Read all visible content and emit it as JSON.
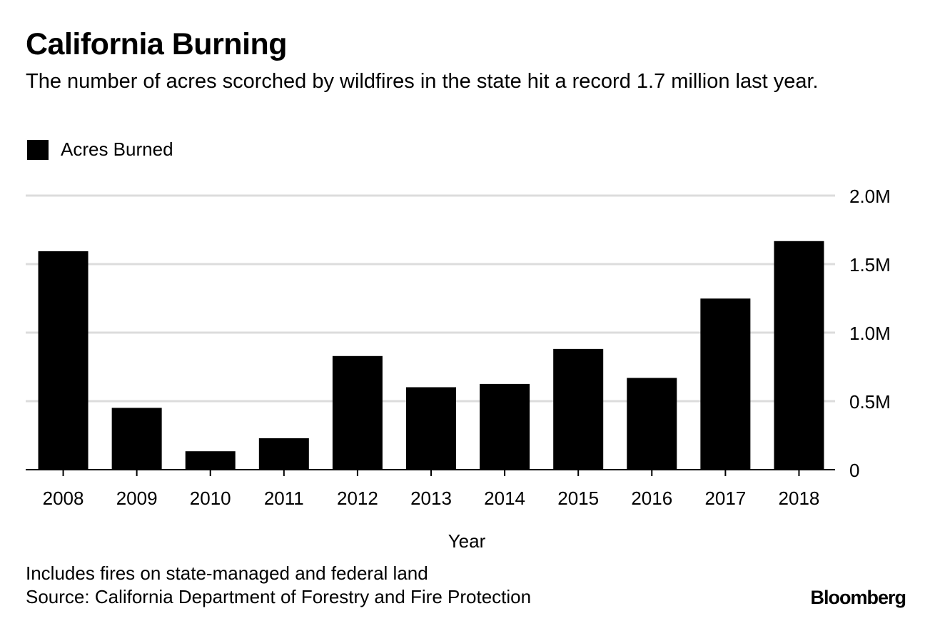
{
  "header": {
    "title": "California Burning",
    "subtitle": "The number of acres scorched by wildfires in the state hit a record 1.7 million last year."
  },
  "footer": {
    "note": "Includes fires on state-managed and federal land",
    "source": "Source: California Department of Forestry and Fire Protection",
    "brand": "Bloomberg"
  },
  "colors": {
    "bar": "#000000",
    "gridline": "#dcdcdc",
    "axis": "#000000",
    "background": "#ffffff"
  },
  "chart_data": {
    "type": "bar",
    "title": "California Burning",
    "subtitle": "The number of acres scorched by wildfires in the state hit a record 1.7 million last year.",
    "xlabel": "Year",
    "ylabel": "",
    "legend": {
      "placement": "top-left",
      "entries": [
        "Acres Burned"
      ]
    },
    "y_axis_position": "right",
    "grid": true,
    "ylim": [
      0,
      2000000
    ],
    "yticks": [
      {
        "value": 0,
        "label": "0"
      },
      {
        "value": 500000,
        "label": "0.5M"
      },
      {
        "value": 1000000,
        "label": "1.0M"
      },
      {
        "value": 1500000,
        "label": "1.5M"
      },
      {
        "value": 2000000,
        "label": "2.0M"
      }
    ],
    "categories": [
      "2008",
      "2009",
      "2010",
      "2011",
      "2012",
      "2013",
      "2014",
      "2015",
      "2016",
      "2017",
      "2018"
    ],
    "series": [
      {
        "name": "Acres Burned",
        "values": [
          1593690,
          451000,
          134462,
          229651,
          829224,
          601635,
          625540,
          880899,
          669534,
          1248606,
          1667855
        ]
      }
    ]
  }
}
